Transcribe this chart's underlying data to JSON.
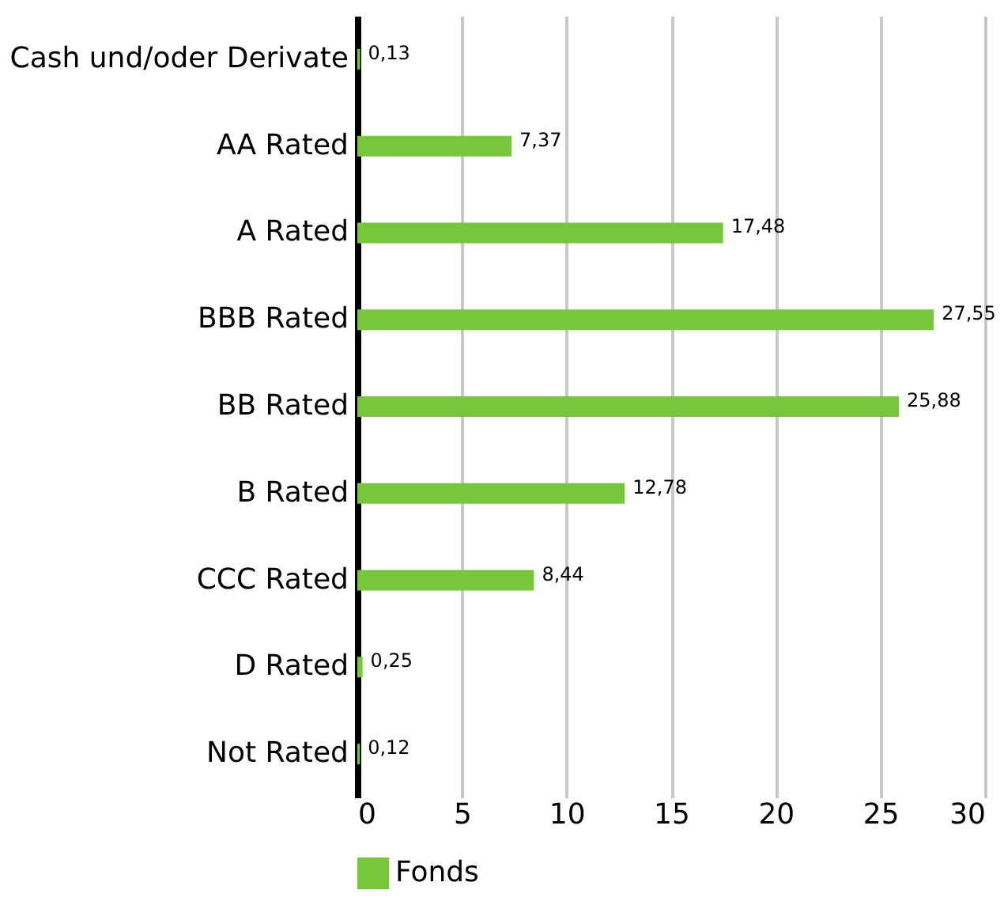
{
  "chart_data": {
    "type": "bar",
    "orientation": "horizontal",
    "categories": [
      "Cash und/oder Derivate",
      "AA Rated",
      "A Rated",
      "BBB Rated",
      "BB Rated",
      "B Rated",
      "CCC Rated",
      "D Rated",
      "Not Rated"
    ],
    "series": [
      {
        "name": "Fonds",
        "color": "#76c83a",
        "values": [
          0.13,
          7.37,
          17.48,
          27.55,
          25.88,
          12.78,
          8.44,
          0.25,
          0.12
        ],
        "value_labels": [
          "0,13",
          "7,37",
          "17,48",
          "27,55",
          "25,88",
          "12,78",
          "8,44",
          "0,25",
          "0,12"
        ]
      }
    ],
    "xlim": [
      0,
      30
    ],
    "xticks": [
      0,
      5,
      10,
      15,
      20,
      25,
      30
    ],
    "grid": "x",
    "legend": "bottom"
  }
}
